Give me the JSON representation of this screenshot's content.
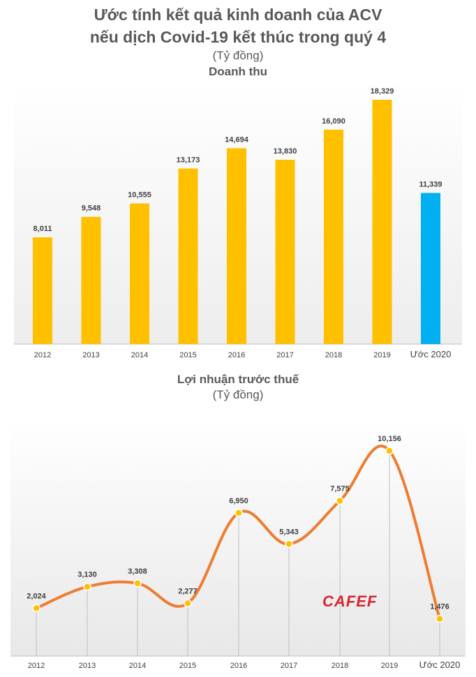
{
  "title_line1": "Ước tính kết quả kinh doanh của ACV",
  "title_line2": "nếu dịch Covid-19 kết thúc trong quý 4",
  "unit": "(Tỷ đồng)",
  "logo_text": "CAFEF",
  "chart_data": [
    {
      "type": "bar",
      "title": "Doanh thu",
      "unit": "(Tỷ đồng)",
      "categories": [
        "2012",
        "2013",
        "2014",
        "2015",
        "2016",
        "2017",
        "2018",
        "2019",
        "Ước 2020"
      ],
      "values": [
        8011,
        9548,
        10555,
        13173,
        14694,
        13830,
        16090,
        18329,
        11339
      ],
      "labels": [
        "8,011",
        "9,548",
        "10,555",
        "13,173",
        "14,694",
        "13,830",
        "16,090",
        "18,329",
        "11,339"
      ],
      "colors": [
        "#FFC000",
        "#FFC000",
        "#FFC000",
        "#FFC000",
        "#FFC000",
        "#FFC000",
        "#FFC000",
        "#FFC000",
        "#00B0F0"
      ],
      "ylim": [
        0,
        18329
      ]
    },
    {
      "type": "line",
      "title": "Lợi nhuận trước thuế",
      "unit": "(Tỷ đồng)",
      "categories": [
        "2012",
        "2013",
        "2014",
        "2015",
        "2016",
        "2017",
        "2018",
        "2019",
        "Ước 2020"
      ],
      "values": [
        2024,
        3130,
        3308,
        2277,
        6950,
        5343,
        7575,
        10156,
        1476
      ],
      "labels": [
        "2,024",
        "3,130",
        "3,308",
        "2,277",
        "6,950",
        "5,343",
        "7,575",
        "10,156",
        "1,476"
      ],
      "line_color": "#ED7D31",
      "marker_color": "#FFC000",
      "ylim": [
        0,
        10156
      ]
    }
  ]
}
